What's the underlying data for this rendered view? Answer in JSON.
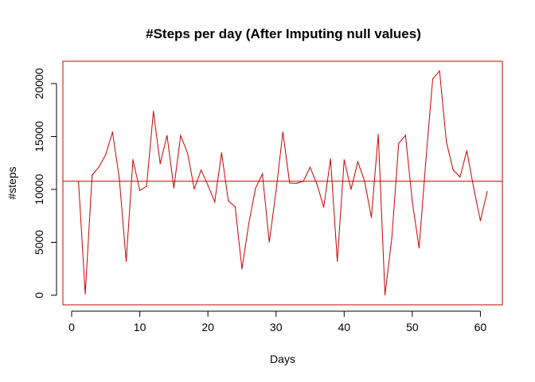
{
  "chart_data": {
    "type": "line",
    "title": "#Steps per day (After Imputing null values)",
    "xlabel": "Days",
    "ylabel": "#steps",
    "xlim": [
      0,
      61
    ],
    "ylim": [
      0,
      21194
    ],
    "x_ticks": [
      "0",
      "10",
      "20",
      "30",
      "40",
      "50",
      "60"
    ],
    "y_ticks": [
      "0",
      "5000",
      "10000",
      "15000",
      "20000"
    ],
    "series": [
      {
        "color": "#cc0000",
        "x": [
          1,
          2,
          3,
          4,
          5,
          6,
          7,
          8,
          9,
          10,
          11,
          12,
          13,
          14,
          15,
          16,
          17,
          18,
          19,
          20,
          21,
          22,
          23,
          24,
          25,
          26,
          27,
          28,
          29,
          30,
          31,
          32,
          33,
          34,
          35,
          36,
          37,
          38,
          39,
          40,
          41,
          42,
          43,
          44,
          45,
          46,
          47,
          48,
          49,
          50,
          51,
          52,
          53,
          54,
          55,
          56,
          57,
          58,
          59,
          60,
          61
        ],
        "values": [
          10766,
          126,
          11352,
          12116,
          13294,
          15420,
          11015,
          3200,
          12811,
          9900,
          10304,
          17382,
          12426,
          15098,
          10139,
          15084,
          13452,
          10056,
          11829,
          10395,
          8821,
          13460,
          8918,
          8355,
          2492,
          6778,
          10119,
          11458,
          5018,
          9819,
          15414,
          10600,
          10571,
          10766,
          12100,
          10500,
          8334,
          12883,
          3219,
          12800,
          10000,
          12608,
          10765,
          7336,
          15200,
          41,
          5441,
          14339,
          15110,
          8841,
          4472,
          12787,
          20427,
          21194,
          14478,
          11834,
          11162,
          13646,
          10183,
          7047,
          9800
        ]
      }
    ],
    "reference_line": {
      "y": 10766,
      "color": "#cc0000"
    }
  }
}
